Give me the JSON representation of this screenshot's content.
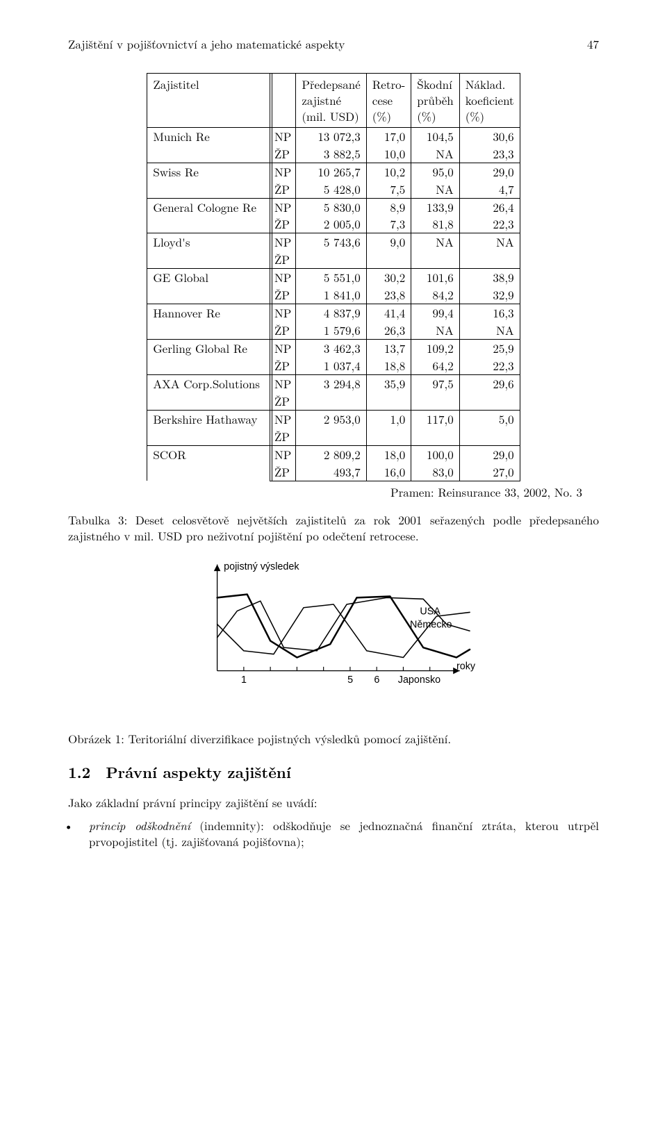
{
  "header": {
    "title_left": "Zajištění v pojišťovnictví a jeho matematické aspekty",
    "page_number": "47"
  },
  "table": {
    "columns": {
      "c0": "Zajistitel",
      "c1": "",
      "c2_l1": "Předepsané",
      "c2_l2": "zajistné",
      "c2_l3": "(mil. USD)",
      "c3_l1": "Retro-",
      "c3_l2": "cese",
      "c3_l3": "(%)",
      "c4_l1": "Škodní",
      "c4_l2": "průběh",
      "c4_l3": "(%)",
      "c5_l1": "Náklad.",
      "c5_l2": "koeficient",
      "c5_l3": "(%)"
    },
    "tags": {
      "np": "NP",
      "zp": "ŽP"
    },
    "rows": [
      {
        "name": "Munich Re",
        "np": [
          "13 072,3",
          "17,0",
          "104,5",
          "30,6"
        ],
        "zp": [
          "3 882,5",
          "10,0",
          "NA",
          "23,3"
        ]
      },
      {
        "name": "Swiss Re",
        "np": [
          "10 265,7",
          "10,2",
          "95,0",
          "29,0"
        ],
        "zp": [
          "5 428,0",
          "7,5",
          "NA",
          "4,7"
        ]
      },
      {
        "name": "General Cologne Re",
        "np": [
          "5 830,0",
          "8,9",
          "133,9",
          "26,4"
        ],
        "zp": [
          "2 005,0",
          "7,3",
          "81,8",
          "22,3"
        ]
      },
      {
        "name": "Lloyd's",
        "np": [
          "5 743,6",
          "9,0",
          "NA",
          "NA"
        ],
        "zp": [
          "",
          "",
          "",
          ""
        ]
      },
      {
        "name": "GE Global",
        "np": [
          "5 551,0",
          "30,2",
          "101,6",
          "38,9"
        ],
        "zp": [
          "1 841,0",
          "23,8",
          "84,2",
          "32,9"
        ]
      },
      {
        "name": "Hannover Re",
        "np": [
          "4 837,9",
          "41,4",
          "99,4",
          "16,3"
        ],
        "zp": [
          "1 579,6",
          "26,3",
          "NA",
          "NA"
        ]
      },
      {
        "name": "Gerling Global Re",
        "np": [
          "3 462,3",
          "13,7",
          "109,2",
          "25,9"
        ],
        "zp": [
          "1 037,4",
          "18,8",
          "64,2",
          "22,3"
        ]
      },
      {
        "name": "AXA Corp.Solutions",
        "np": [
          "3 294,8",
          "35,9",
          "97,5",
          "29,6"
        ],
        "zp": [
          "",
          "",
          "",
          ""
        ]
      },
      {
        "name": "Berkshire Hathaway",
        "np": [
          "2 953,0",
          "1,0",
          "117,0",
          "5,0"
        ],
        "zp": [
          "",
          "",
          "",
          ""
        ]
      },
      {
        "name": "SCOR",
        "np": [
          "2 809,2",
          "18,0",
          "100,0",
          "29,0"
        ],
        "zp": [
          "493,7",
          "16,0",
          "83,0",
          "27,0"
        ]
      }
    ],
    "source": "Pramen: Reinsurance 33, 2002, No. 3",
    "caption": "Tabulka 3: Deset celosvětově největších zajistitelů za rok 2001 seřazených podle předepsaného zajistného v mil. USD pro neživotní pojištění po odečtení retrocese."
  },
  "figure": {
    "type": "line-sketch",
    "y_label": "pojistný výsledek",
    "x_label": "roky",
    "x_ticks": [
      "1",
      "5",
      "6"
    ],
    "series_labels": {
      "usa": "USA",
      "de": "Německo",
      "jp": "Japonsko"
    },
    "colors": {
      "axis": "#000000",
      "lines": "#000000",
      "bg": "#ffffff"
    },
    "stroke_width_thin": 1.6,
    "stroke_width_thick": 2.6,
    "series": {
      "usa_points": [
        [
          0,
          120
        ],
        [
          30,
          80
        ],
        [
          65,
          65
        ],
        [
          100,
          135
        ],
        [
          150,
          140
        ],
        [
          195,
          70
        ],
        [
          255,
          60
        ],
        [
          310,
          62
        ],
        [
          345,
          100
        ],
        [
          380,
          110
        ]
      ],
      "de_points": [
        [
          0,
          100
        ],
        [
          40,
          140
        ],
        [
          85,
          145
        ],
        [
          130,
          75
        ],
        [
          175,
          70
        ],
        [
          225,
          140
        ],
        [
          280,
          150
        ],
        [
          330,
          88
        ],
        [
          380,
          82
        ]
      ],
      "jp_points": [
        [
          0,
          60
        ],
        [
          45,
          55
        ],
        [
          80,
          125
        ],
        [
          120,
          150
        ],
        [
          170,
          130
        ],
        [
          210,
          60
        ],
        [
          260,
          58
        ],
        [
          310,
          135
        ],
        [
          360,
          150
        ],
        [
          380,
          138
        ]
      ]
    },
    "caption": "Obrázek 1: Teritoriální diverzifikace pojistných výsledků pomocí zajištění."
  },
  "section": {
    "number": "1.2",
    "title": "Právní aspekty zajištění",
    "lead": "Jako základní právní principy zajištění se uvádí:",
    "bullet1_italic": "princip odškodnění",
    "bullet1_rest": " (indemnity): odškodňuje se jednoznačná finanční ztráta, kterou utrpěl prvopojistitel (tj. zajišťovaná pojišťovna);"
  }
}
